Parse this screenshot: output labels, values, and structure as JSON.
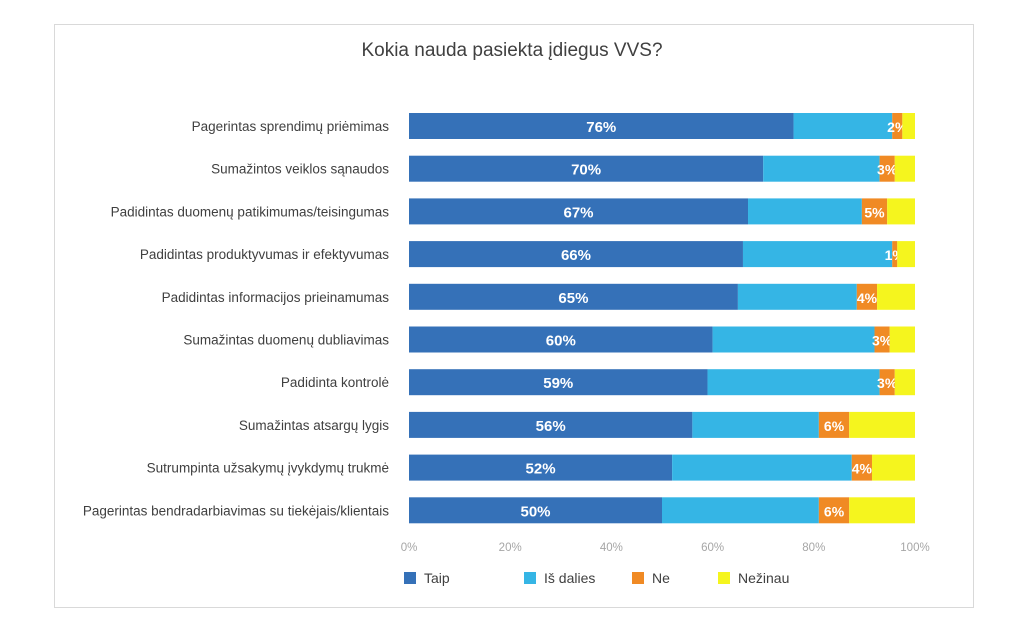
{
  "chart_data": {
    "type": "bar",
    "orientation": "horizontal",
    "stacked": true,
    "title": "Kokia nauda pasiekta įdiegus VVS?",
    "categories": [
      "Pagerintas sprendimų priėmimas",
      "Sumažintos veiklos sąnaudos",
      "Padidintas duomenų patikimumas/teisingumas",
      "Padidintas produktyvumas ir efektyvumas",
      "Padidintas informacijos prieinamumas",
      "Sumažintas duomenų dubliavimas",
      "Padidinta kontrolė",
      "Sumažintas atsargų lygis",
      "Sutrumpinta užsakymų įvykdymų trukmė",
      "Pagerintas bendradarbiavimas su tiekėjais/klientais"
    ],
    "series": [
      {
        "name": "Taip",
        "color": "#3571b8",
        "values": [
          76,
          70,
          67,
          66,
          65,
          60,
          59,
          56,
          52,
          50
        ],
        "labels": [
          "76%",
          "70%",
          "67%",
          "66%",
          "65%",
          "60%",
          "59%",
          "56%",
          "52%",
          "50%"
        ]
      },
      {
        "name": "Iš dalies",
        "color": "#35b5e5",
        "values": [
          19.5,
          23,
          22.5,
          29.5,
          23.5,
          32,
          34,
          25,
          35.5,
          31
        ]
      },
      {
        "name": "Ne",
        "color": "#f08a24",
        "values": [
          2,
          3,
          5,
          1,
          4,
          3,
          3,
          6,
          4,
          6
        ],
        "labels": [
          "2%",
          "3%",
          "5%",
          "1%",
          "4%",
          "3%",
          "3%",
          "6%",
          "4%",
          "6%"
        ]
      },
      {
        "name": "Nežinau",
        "color": "#f5f51e",
        "values": [
          2.5,
          4,
          5.5,
          3.5,
          7.5,
          5,
          4,
          13,
          8.5,
          13
        ]
      }
    ],
    "xaxis": {
      "min": 0,
      "max": 100,
      "ticks": [
        "0%",
        "20%",
        "40%",
        "60%",
        "80%",
        "100%"
      ]
    },
    "legend_position": "bottom"
  }
}
